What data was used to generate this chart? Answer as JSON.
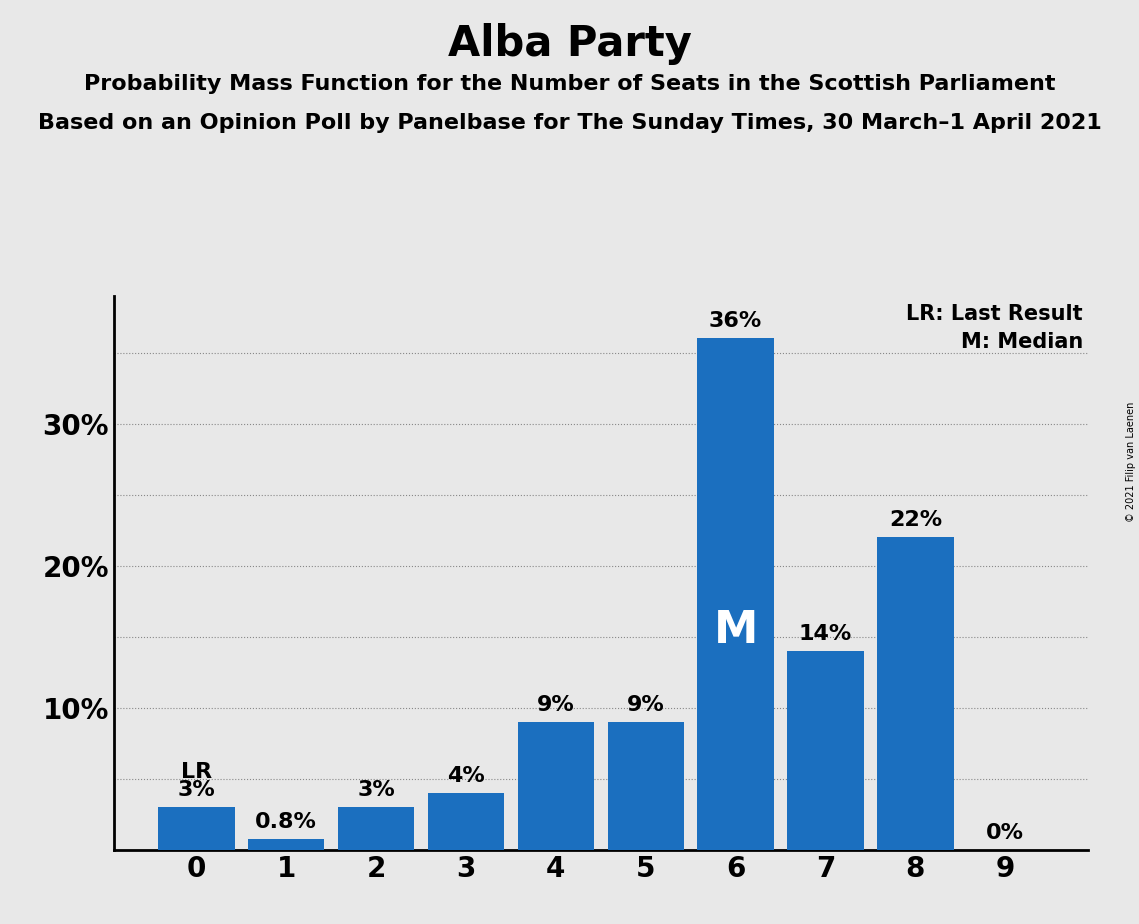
{
  "title": "Alba Party",
  "subtitle1": "Probability Mass Function for the Number of Seats in the Scottish Parliament",
  "subtitle2": "Based on an Opinion Poll by Panelbase for The Sunday Times, 30 March–1 April 2021",
  "copyright": "© 2021 Filip van Laenen",
  "categories": [
    0,
    1,
    2,
    3,
    4,
    5,
    6,
    7,
    8,
    9
  ],
  "values": [
    3,
    0.8,
    3,
    4,
    9,
    9,
    36,
    14,
    22,
    0
  ],
  "bar_color": "#1B6FBF",
  "background_color": "#E8E8E8",
  "ytick_labels": [
    "10%",
    "20%",
    "30%"
  ],
  "ytick_values": [
    10,
    20,
    30
  ],
  "dotted_lines": [
    5,
    10,
    15,
    20,
    25,
    30,
    35
  ],
  "ylim": [
    0,
    39
  ],
  "legend_lr": "LR: Last Result",
  "legend_m": "M: Median",
  "median_bar": 6,
  "lr_bar": 0,
  "labels": [
    "3%",
    "0.8%",
    "3%",
    "4%",
    "9%",
    "9%",
    "36%",
    "14%",
    "22%",
    "0%"
  ],
  "title_fontsize": 30,
  "subtitle_fontsize": 16,
  "label_fontsize": 16,
  "tick_fontsize": 20,
  "ytick_fontsize": 20,
  "legend_fontsize": 15,
  "grid_color": "#888888"
}
